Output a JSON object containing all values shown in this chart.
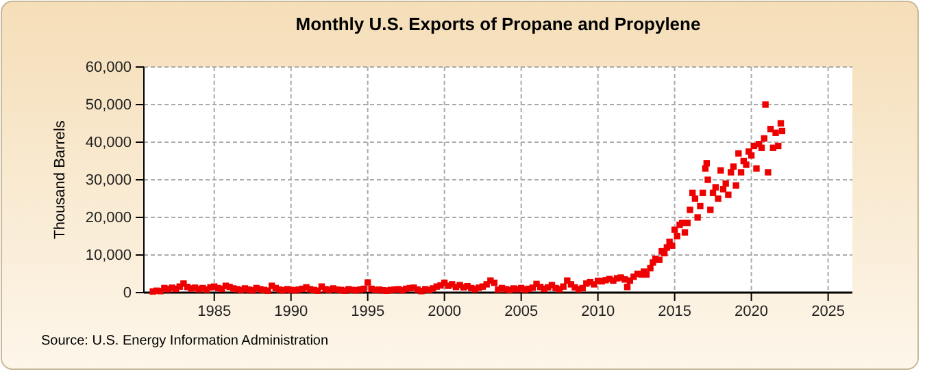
{
  "chart_data": {
    "type": "scatter",
    "title": "Monthly U.S. Exports of Propane and Propylene",
    "ylabel": "Thousand Barrels",
    "annotations": [
      "Source: U.S. Energy Information Administration"
    ],
    "x": [
      "1981-01",
      "1981-04",
      "1981-07",
      "1981-10",
      "1982-01",
      "1982-04",
      "1982-07",
      "1982-10",
      "1983-01",
      "1983-04",
      "1983-07",
      "1983-10",
      "1984-01",
      "1984-04",
      "1984-07",
      "1984-10",
      "1985-01",
      "1985-04",
      "1985-07",
      "1985-10",
      "1986-01",
      "1986-04",
      "1986-07",
      "1986-10",
      "1987-01",
      "1987-04",
      "1987-07",
      "1987-10",
      "1988-01",
      "1988-04",
      "1988-07",
      "1988-10",
      "1989-01",
      "1989-04",
      "1989-07",
      "1989-10",
      "1990-01",
      "1990-04",
      "1990-07",
      "1990-10",
      "1991-01",
      "1991-04",
      "1991-07",
      "1991-10",
      "1992-01",
      "1992-04",
      "1992-07",
      "1992-10",
      "1993-01",
      "1993-04",
      "1993-07",
      "1993-10",
      "1994-01",
      "1994-04",
      "1994-07",
      "1994-10",
      "1995-01",
      "1995-04",
      "1995-07",
      "1995-10",
      "1996-01",
      "1996-04",
      "1996-07",
      "1996-10",
      "1997-01",
      "1997-04",
      "1997-07",
      "1997-10",
      "1998-01",
      "1998-04",
      "1998-07",
      "1998-10",
      "1999-01",
      "1999-04",
      "1999-07",
      "1999-10",
      "2000-01",
      "2000-04",
      "2000-07",
      "2000-10",
      "2001-01",
      "2001-04",
      "2001-07",
      "2001-10",
      "2002-01",
      "2002-04",
      "2002-07",
      "2002-10",
      "2003-01",
      "2003-04",
      "2003-07",
      "2003-10",
      "2004-01",
      "2004-04",
      "2004-07",
      "2004-10",
      "2005-01",
      "2005-04",
      "2005-07",
      "2005-10",
      "2006-01",
      "2006-04",
      "2006-07",
      "2006-10",
      "2007-01",
      "2007-04",
      "2007-07",
      "2007-10",
      "2008-01",
      "2008-04",
      "2008-07",
      "2008-10",
      "2009-01",
      "2009-04",
      "2009-07",
      "2009-10",
      "2010-01",
      "2010-04",
      "2010-07",
      "2010-10",
      "2011-01",
      "2011-04",
      "2011-07",
      "2011-10",
      "2011-12",
      "2012-02",
      "2012-05",
      "2012-08",
      "2012-11",
      "2013-01",
      "2013-03",
      "2013-06",
      "2013-08",
      "2013-10",
      "2014-01",
      "2014-03",
      "2014-05",
      "2014-07",
      "2014-09",
      "2014-11",
      "2015-01",
      "2015-03",
      "2015-05",
      "2015-07",
      "2015-09",
      "2015-11",
      "2016-01",
      "2016-03",
      "2016-05",
      "2016-07",
      "2016-09",
      "2016-11",
      "2017-01",
      "2017-02",
      "2017-03",
      "2017-05",
      "2017-07",
      "2017-09",
      "2017-11",
      "2018-01",
      "2018-03",
      "2018-05",
      "2018-07",
      "2018-09",
      "2018-11",
      "2019-01",
      "2019-03",
      "2019-05",
      "2019-07",
      "2019-09",
      "2019-11",
      "2020-01",
      "2020-03",
      "2020-05",
      "2020-07",
      "2020-09",
      "2020-11",
      "2020-12",
      "2021-02",
      "2021-04",
      "2021-06",
      "2021-08",
      "2021-10",
      "2021-12",
      "2022-01"
    ],
    "series": [
      {
        "color": "#ee0000",
        "values": [
          300,
          500,
          400,
          1200,
          900,
          1300,
          1000,
          1600,
          2400,
          1500,
          1100,
          1300,
          900,
          1200,
          800,
          1400,
          1600,
          1200,
          1000,
          1800,
          1500,
          1100,
          900,
          700,
          1100,
          800,
          600,
          1200,
          900,
          700,
          500,
          1800,
          1200,
          800,
          600,
          900,
          700,
          600,
          800,
          1000,
          1400,
          900,
          700,
          500,
          1600,
          900,
          700,
          1100,
          800,
          700,
          500,
          900,
          700,
          600,
          800,
          1000,
          2700,
          1000,
          700,
          800,
          600,
          500,
          700,
          800,
          900,
          600,
          1000,
          1200,
          1300,
          800,
          400,
          900,
          700,
          1100,
          1600,
          1900,
          2600,
          1800,
          2200,
          1500,
          2000,
          1400,
          1700,
          1200,
          900,
          1300,
          1600,
          2200,
          3200,
          2600,
          800,
          1200,
          900,
          700,
          1100,
          900,
          1200,
          800,
          1000,
          1300,
          2300,
          1500,
          1000,
          1400,
          2000,
          1200,
          900,
          1600,
          3200,
          2200,
          1400,
          900,
          1200,
          2400,
          2800,
          2200,
          3100,
          3000,
          3300,
          3600,
          3200,
          3800,
          4000,
          3500,
          1500,
          3200,
          4200,
          5000,
          4800,
          5600,
          4800,
          6500,
          8000,
          9000,
          8700,
          11000,
          10500,
          12000,
          13500,
          12500,
          16700,
          15000,
          18000,
          18500,
          16000,
          18500,
          22000,
          26500,
          25000,
          20000,
          23000,
          26500,
          33000,
          34400,
          30000,
          22000,
          26500,
          28000,
          25000,
          32500,
          27500,
          29000,
          26000,
          32000,
          33500,
          28500,
          37000,
          32000,
          35000,
          34000,
          37500,
          36500,
          39000,
          33000,
          39500,
          38500,
          41000,
          50000,
          32000,
          43500,
          38500,
          42500,
          39000,
          45000,
          43000
        ]
      }
    ],
    "marker": "square",
    "grid": true,
    "xlim": [
      "1980-06",
      "2026-08"
    ],
    "xticks": [
      {
        "value": "1985",
        "label": "1985"
      },
      {
        "value": "1990",
        "label": "1990"
      },
      {
        "value": "1995",
        "label": "1995"
      },
      {
        "value": "2000",
        "label": "2000"
      },
      {
        "value": "2005",
        "label": "2005"
      },
      {
        "value": "2010",
        "label": "2010"
      },
      {
        "value": "2015",
        "label": "2015"
      },
      {
        "value": "2020",
        "label": "2020"
      },
      {
        "value": "2025",
        "label": "2025"
      }
    ],
    "ylim": [
      0,
      60000
    ],
    "yticks": [
      {
        "value": 0,
        "label": "0"
      },
      {
        "value": 10000,
        "label": "10,000"
      },
      {
        "value": 20000,
        "label": "20,000"
      },
      {
        "value": 30000,
        "label": "30,000"
      },
      {
        "value": 40000,
        "label": "40,000"
      },
      {
        "value": 50000,
        "label": "50,000"
      },
      {
        "value": 60000,
        "label": "60,000"
      }
    ]
  }
}
